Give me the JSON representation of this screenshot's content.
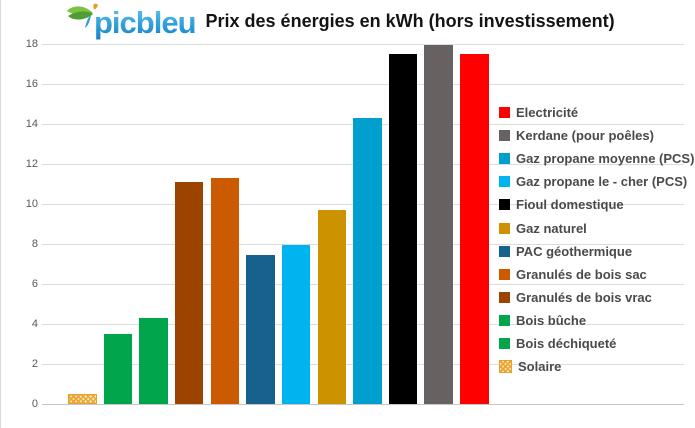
{
  "logo": {
    "text": "picbleu"
  },
  "header": {
    "title": "Prix des énergies en kWh (hors investissement)"
  },
  "colors": {
    "electricite": "#ff0000",
    "kerdane": "#676162",
    "gaz_propane_moyenne": "#009fce",
    "gaz_propane_le_cher": "#00b4ef",
    "fioul_domestique": "#000000",
    "gaz_naturel": "#cc9200",
    "pac_geothermique": "#17618f",
    "granules_bois_sac": "#cb5a00",
    "granules_bois_vrac": "#9b4400",
    "bois_buche": "#00a54c",
    "bois_dechiquete": "#00a54c",
    "solaire_pattern_fg": "#eda33c",
    "solaire_pattern_bg": "#ffeaa9",
    "gridline": "#dcdcdc",
    "tick_text": "#595959"
  },
  "chart_data": {
    "type": "bar",
    "title": "Prix des énergies en kWh (hors investissement)",
    "xlabel": "",
    "ylabel": "",
    "ylim": [
      0,
      18
    ],
    "ytick_step": 2,
    "grid": true,
    "legend_position": "right",
    "bars": [
      {
        "id": "solaire",
        "label": "Solaire",
        "value": 0.5,
        "color": "#eda33c",
        "pattern": true
      },
      {
        "id": "bois-dechiquete",
        "label": "Bois déchiqueté",
        "value": 3.5,
        "color": "#00a54c"
      },
      {
        "id": "bois-buche",
        "label": "Bois bûche",
        "value": 4.3,
        "color": "#00a54c"
      },
      {
        "id": "granules-bois-vrac",
        "label": "Granulés de bois vrac",
        "value": 11.1,
        "color": "#9b4400"
      },
      {
        "id": "granules-bois-sac",
        "label": "Granulés de bois sac",
        "value": 11.3,
        "color": "#cb5a00"
      },
      {
        "id": "pac-geothermique",
        "label": "PAC géothermique",
        "value": 7.45,
        "color": "#17618f"
      },
      {
        "id": "gaz-propane-le-cher",
        "label": "Gaz propane le - cher  (PCS)",
        "value": 7.95,
        "color": "#00b4ef"
      },
      {
        "id": "gaz-naturel",
        "label": "Gaz naturel",
        "value": 9.7,
        "color": "#cc9200"
      },
      {
        "id": "gaz-propane-moyenne",
        "label": "Gaz propane moyenne (PCS)",
        "value": 14.3,
        "color": "#009fce"
      },
      {
        "id": "fioul-domestique",
        "label": "Fioul domestique",
        "value": 17.5,
        "color": "#000000"
      },
      {
        "id": "kerdane",
        "label": "Kerdane (pour poêles)",
        "value": 17.95,
        "color": "#676162"
      },
      {
        "id": "electricite",
        "label": "Electricité",
        "value": 17.5,
        "color": "#ff0000"
      }
    ],
    "legend": [
      {
        "id": "electricite",
        "label": "Electricité",
        "color": "#ff0000"
      },
      {
        "id": "kerdane",
        "label": "Kerdane (pour poêles)",
        "color": "#676162"
      },
      {
        "id": "gaz-propane-moyenne",
        "label": "Gaz propane moyenne (PCS)",
        "color": "#009fce"
      },
      {
        "id": "gaz-propane-le-cher",
        "label": "Gaz propane le - cher  (PCS)",
        "color": "#00b4ef"
      },
      {
        "id": "fioul-domestique",
        "label": "Fioul domestique",
        "color": "#000000"
      },
      {
        "id": "gaz-naturel",
        "label": "Gaz naturel",
        "color": "#cc9200"
      },
      {
        "id": "pac-geothermique",
        "label": "PAC géothermique",
        "color": "#17618f"
      },
      {
        "id": "granules-bois-sac",
        "label": "Granulés de bois sac",
        "color": "#cb5a00"
      },
      {
        "id": "granules-bois-vrac",
        "label": "Granulés de bois vrac",
        "color": "#9b4400"
      },
      {
        "id": "bois-buche",
        "label": "Bois bûche",
        "color": "#00a54c"
      },
      {
        "id": "bois-dechiquete",
        "label": "Bois déchiqueté",
        "color": "#00a54c"
      },
      {
        "id": "solaire",
        "label": "Solaire",
        "color": "#eda33c",
        "pattern": true
      }
    ]
  }
}
